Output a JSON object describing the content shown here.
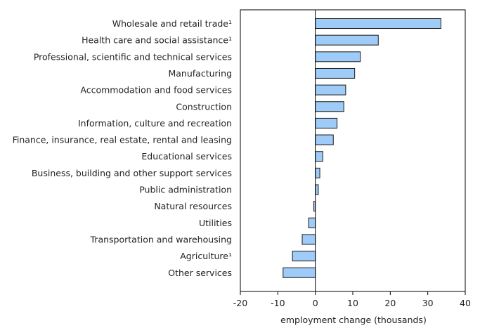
{
  "chart_data": {
    "type": "bar",
    "orientation": "horizontal",
    "categories": [
      "Wholesale and retail trade¹",
      "Health care and social assistance¹",
      "Professional, scientific and technical services",
      "Manufacturing",
      "Accommodation and food services",
      "Construction",
      "Information, culture and recreation",
      "Finance, insurance, real estate, rental and leasing",
      "Educational services",
      "Business, building and other support services",
      "Public administration",
      "Natural resources",
      "Utilities",
      "Transportation and warehousing",
      "Agriculture¹",
      "Other services"
    ],
    "values": [
      33.5,
      16.8,
      12.0,
      10.5,
      8.1,
      7.6,
      5.8,
      4.8,
      2.0,
      1.2,
      0.8,
      -0.4,
      -1.8,
      -3.5,
      -6.1,
      -8.6
    ],
    "title": "",
    "xlabel": "employment change (thousands)",
    "ylabel": "",
    "xlim": [
      -20,
      40
    ],
    "xticks": [
      -20,
      -10,
      0,
      10,
      20,
      30,
      40
    ],
    "xtick_labels": [
      "-20",
      "-10",
      "0",
      "10",
      "20",
      "30",
      "40"
    ],
    "grid": false,
    "legend": "none",
    "bar_color": "#9ecbf7",
    "bar_stroke": "#1a1a1a"
  }
}
